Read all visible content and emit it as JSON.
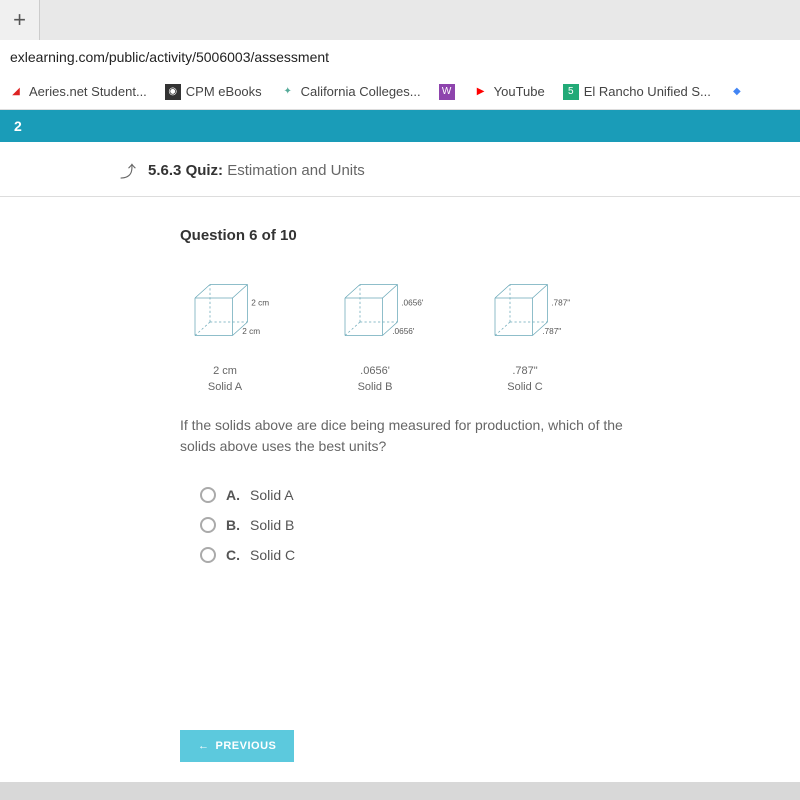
{
  "tab": {
    "plus": "+"
  },
  "url": "exlearning.com/public/activity/5006003/assessment",
  "bookmarks": [
    {
      "label": "Aeries.net Student...",
      "icon_bg": "#ffffff",
      "icon_fg": "#d22",
      "glyph": "◢"
    },
    {
      "label": "CPM eBooks",
      "icon_bg": "#333333",
      "icon_fg": "#fff",
      "glyph": "◉"
    },
    {
      "label": "California Colleges...",
      "icon_bg": "#ffffff",
      "icon_fg": "#5a9",
      "glyph": "✦"
    },
    {
      "label": "",
      "icon_bg": "#8e44ad",
      "icon_fg": "#fff",
      "glyph": "W"
    },
    {
      "label": "YouTube",
      "icon_bg": "#ffffff",
      "icon_fg": "#ff0000",
      "glyph": "▶"
    },
    {
      "label": "El Rancho Unified S...",
      "icon_bg": "#2a7",
      "icon_fg": "#fff",
      "glyph": "5"
    },
    {
      "label": "",
      "icon_bg": "#ffffff",
      "icon_fg": "#4285f4",
      "glyph": "◆"
    }
  ],
  "strip": "2",
  "quiz": {
    "back": "⤴",
    "num": "5.6.3",
    "kind": "Quiz:",
    "title": "Estimation and Units"
  },
  "question": {
    "heading": "Question 6 of 10",
    "text": "If the solids above are dice being measured for production, which of the solids above uses the best units?",
    "options": [
      {
        "letter": "A.",
        "label": "Solid A"
      },
      {
        "letter": "B.",
        "label": "Solid B"
      },
      {
        "letter": "C.",
        "label": "Solid C"
      }
    ]
  },
  "solids": [
    {
      "name": "Solid A",
      "dim": "2 cm",
      "depth": "2 cm",
      "side": "2 cm"
    },
    {
      "name": "Solid B",
      "dim": ".0656'",
      "depth": ".0656'",
      "side": ".0656'"
    },
    {
      "name": "Solid C",
      "dim": ".787\"",
      "depth": ".787\"",
      "side": ".787\""
    }
  ],
  "prev_button": "PREVIOUS",
  "colors": {
    "accent": "#1a9cb8",
    "button": "#5cc9dd",
    "cube_stroke": "#6aa8b8"
  }
}
